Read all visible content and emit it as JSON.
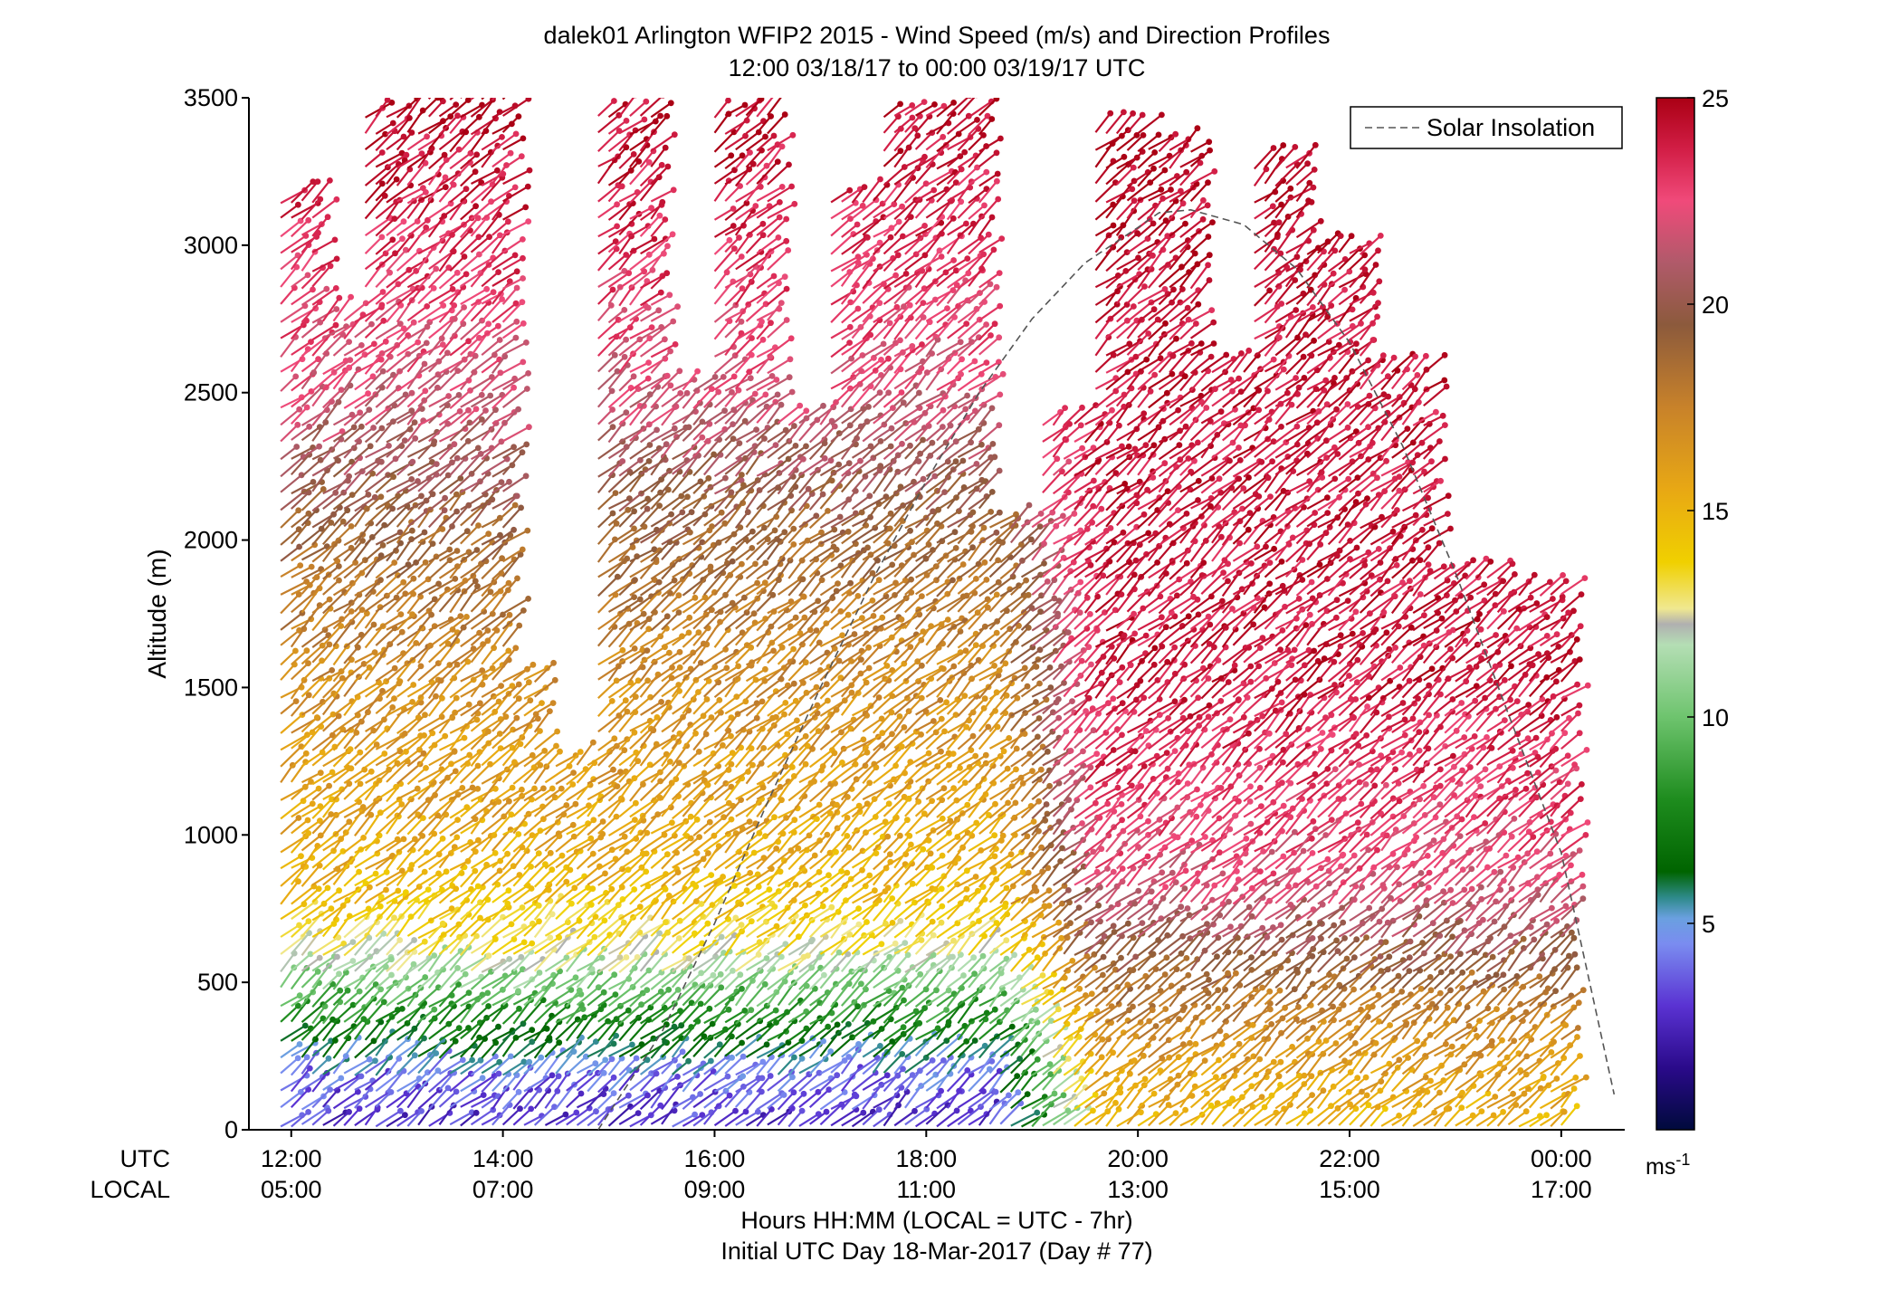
{
  "chart_data": {
    "type": "barb-profile",
    "title": "dalek01 Arlington WFIP2 2015 - Wind Speed (m/s) and Direction Profiles",
    "subtitle": "12:00 03/18/17 to 00:00 03/19/17  UTC",
    "ylabel": "Altitude (m)",
    "ylim": [
      0,
      3500
    ],
    "y_ticks": [
      "0",
      "500",
      "1000",
      "1500",
      "2000",
      "2500",
      "3000",
      "3500"
    ],
    "y_tick_values": [
      0,
      500,
      1000,
      1500,
      2000,
      2500,
      3000,
      3500
    ],
    "xlim_hours": [
      11.6,
      24.6
    ],
    "x_row_labels": {
      "utc": "UTC",
      "local": "LOCAL"
    },
    "x_ticks_utc": [
      "12:00",
      "14:00",
      "16:00",
      "18:00",
      "20:00",
      "22:00",
      "00:00"
    ],
    "x_ticks_local": [
      "05:00",
      "07:00",
      "09:00",
      "11:00",
      "13:00",
      "15:00",
      "17:00"
    ],
    "x_tick_hours": [
      12,
      14,
      16,
      18,
      20,
      22,
      24
    ],
    "xlabel_line1": "Hours HH:MM  (LOCAL = UTC - 7hr)",
    "xlabel_line2": "Initial UTC Day 18-Mar-2017 (Day # 77)",
    "legend": {
      "label": "Solar Insolation",
      "position": "top-right"
    },
    "colorbar": {
      "min": 0,
      "max": 25,
      "ticks": [
        5,
        10,
        15,
        20,
        25
      ],
      "unit": "ms-1"
    },
    "solar_insolation": {
      "hours": [
        14.9,
        15.5,
        16.0,
        16.5,
        17.0,
        17.5,
        18.0,
        18.5,
        19.0,
        19.5,
        20.0,
        20.2,
        20.5,
        21.0,
        21.5,
        22.0,
        22.5,
        23.0,
        23.5,
        24.0,
        24.5
      ],
      "altitude": [
        0,
        330,
        700,
        1110,
        1500,
        1870,
        2200,
        2500,
        2750,
        2940,
        3060,
        3110,
        3120,
        3070,
        2920,
        2670,
        2320,
        1890,
        1410,
        940,
        120
      ]
    },
    "profiles": [
      {
        "start_hour": 11.9,
        "end_hour": 12.3,
        "top_m": 3200
      },
      {
        "start_hour": 12.3,
        "end_hour": 12.7,
        "top_m": 2750
      },
      {
        "start_hour": 12.7,
        "end_hour": 13.3,
        "top_m": 3450
      },
      {
        "start_hour": 13.3,
        "end_hour": 14.1,
        "top_m": 3500
      },
      {
        "start_hour": 14.1,
        "end_hour": 14.4,
        "top_m": 1550
      },
      {
        "start_hour": 14.4,
        "end_hour": 14.9,
        "top_m": 1250
      },
      {
        "start_hour": 14.9,
        "end_hour": 15.5,
        "top_m": 3450
      },
      {
        "start_hour": 15.5,
        "end_hour": 16.0,
        "top_m": 2550
      },
      {
        "start_hour": 16.0,
        "end_hour": 16.6,
        "top_m": 3450
      },
      {
        "start_hour": 16.6,
        "end_hour": 17.1,
        "top_m": 2400
      },
      {
        "start_hour": 17.1,
        "end_hour": 17.6,
        "top_m": 3150
      },
      {
        "start_hour": 17.6,
        "end_hour": 18.6,
        "top_m": 3450
      },
      {
        "start_hour": 18.6,
        "end_hour": 19.1,
        "top_m": 2100
      },
      {
        "start_hour": 19.1,
        "end_hour": 19.6,
        "top_m": 2400
      },
      {
        "start_hour": 19.6,
        "end_hour": 20.1,
        "top_m": 3400
      },
      {
        "start_hour": 20.1,
        "end_hour": 20.6,
        "top_m": 3350
      },
      {
        "start_hour": 20.6,
        "end_hour": 21.1,
        "top_m": 2600
      },
      {
        "start_hour": 21.1,
        "end_hour": 21.6,
        "top_m": 3300
      },
      {
        "start_hour": 21.6,
        "end_hour": 22.2,
        "top_m": 3000
      },
      {
        "start_hour": 22.2,
        "end_hour": 22.8,
        "top_m": 2600
      },
      {
        "start_hour": 22.8,
        "end_hour": 23.5,
        "top_m": 1900
      },
      {
        "start_hour": 23.5,
        "end_hour": 24.1,
        "top_m": 1850
      }
    ],
    "speed_profile_m_s": {
      "altitude_m": [
        0,
        150,
        300,
        450,
        600,
        800,
        1100,
        1500,
        2000,
        2500,
        3000,
        3500
      ],
      "morning_12_to_19": [
        3,
        4,
        7,
        10,
        13,
        15,
        16,
        17,
        19,
        22,
        23.5,
        24.5
      ],
      "afternoon_19_to_24": [
        15,
        16,
        17,
        18.5,
        20,
        22,
        23,
        24,
        24,
        24,
        24.5,
        25
      ]
    },
    "direction_note": "barbs point up-right (southwesterly flow)"
  }
}
